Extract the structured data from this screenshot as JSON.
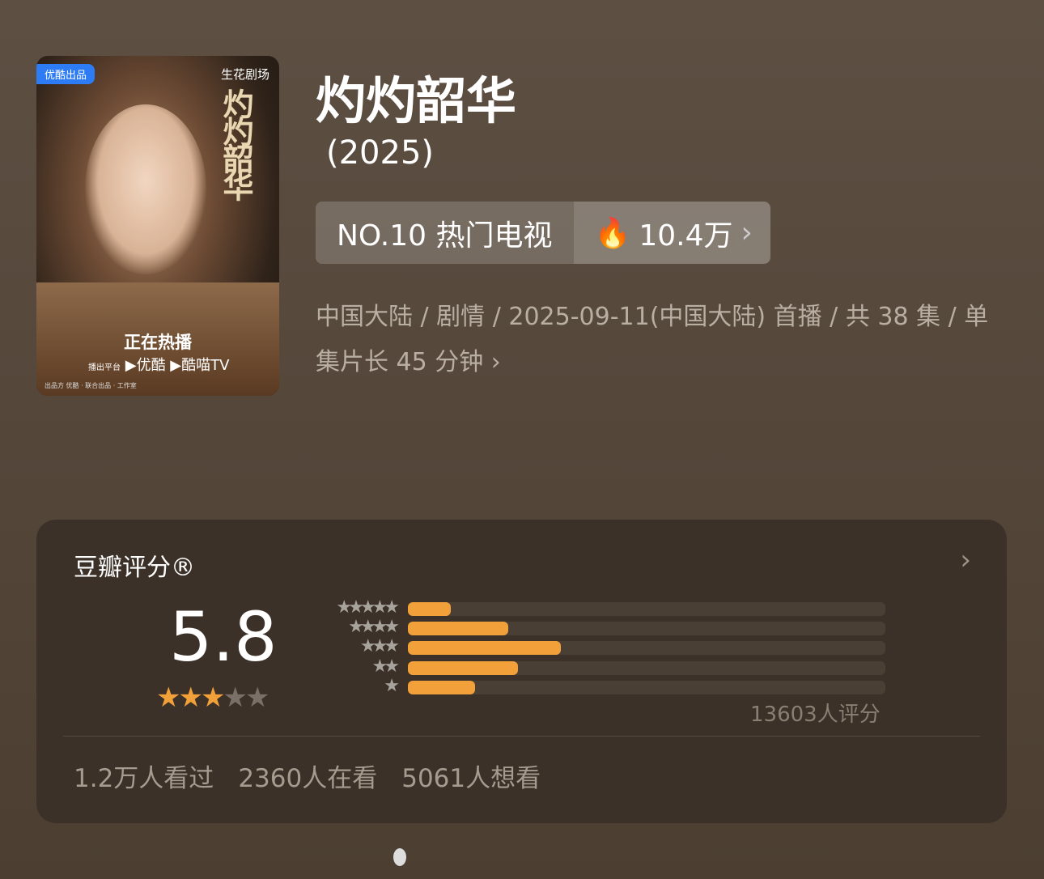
{
  "poster": {
    "badge": "优酷出品",
    "studio": "生花剧场",
    "vertical_title": "灼灼韶华",
    "hot_label": "正在热播",
    "platform_label": "播出平台",
    "platforms": [
      "优酷",
      "酷喵TV"
    ],
    "credits": "出品方 优酷 · 联合出品 · 工作室"
  },
  "title": "灼灼韶华",
  "year": "(2025)",
  "rank": {
    "label": "NO.10 热门电视",
    "heat": "10.4万",
    "chevron": "›"
  },
  "meta": "中国大陆 / 剧情 / 2025-09-11(中国大陆) 首播 / 共 38 集 / 单集片长 45 分钟 ›",
  "rating": {
    "header": "豆瓣评分®",
    "score": "5.8",
    "stars_filled": 3,
    "stars_total": 5,
    "count_text": "13603人评分",
    "accent": "#f2a03a",
    "distribution": [
      {
        "stars": 5,
        "percent": 9
      },
      {
        "stars": 4,
        "percent": 21
      },
      {
        "stars": 3,
        "percent": 32
      },
      {
        "stars": 2,
        "percent": 23
      },
      {
        "stars": 1,
        "percent": 14
      }
    ]
  },
  "stats": [
    "1.2万人看过",
    "2360人在看",
    "5061人想看"
  ]
}
